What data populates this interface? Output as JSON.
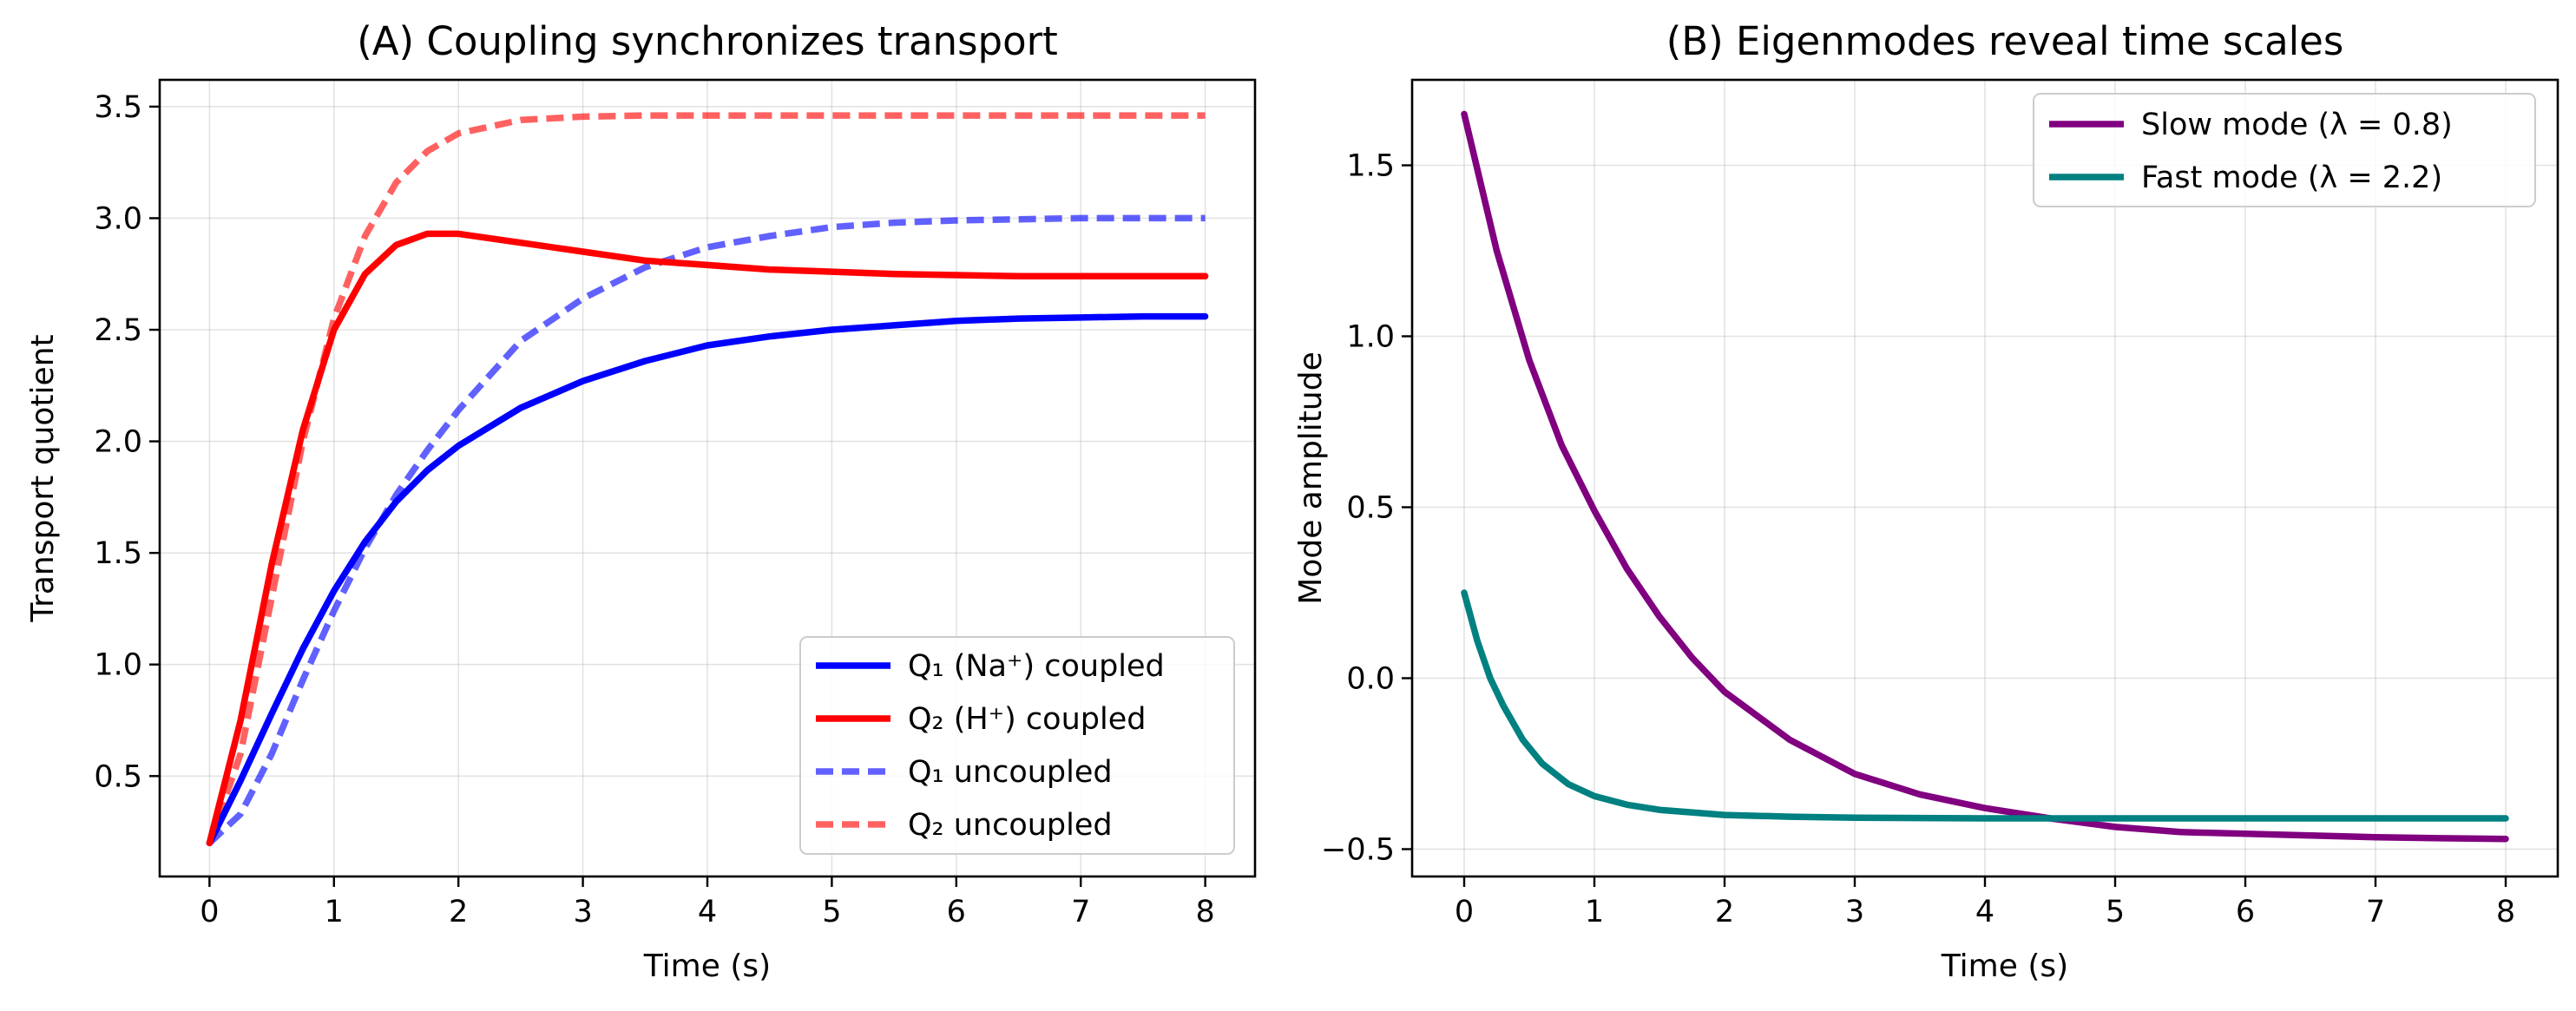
{
  "chart_data": [
    {
      "type": "line",
      "title": "(A) Coupling synchronizes transport",
      "xlabel": "Time (s)",
      "ylabel": "Transport quotient",
      "xlim": [
        -0.4,
        8.4
      ],
      "ylim": [
        0.05,
        3.62
      ],
      "xticks": [
        "0",
        "1",
        "2",
        "3",
        "4",
        "5",
        "6",
        "7",
        "8"
      ],
      "yticks": [
        "0.5",
        "1.0",
        "1.5",
        "2.0",
        "2.5",
        "3.0",
        "3.5"
      ],
      "grid": true,
      "legend_position": "lower-right",
      "series": [
        {
          "name": "Q₁ (Na⁺) coupled",
          "color": "#0000ff",
          "style": "solid",
          "opacity": 1,
          "x": [
            0,
            0.25,
            0.5,
            0.75,
            1,
            1.25,
            1.5,
            1.75,
            2,
            2.5,
            3,
            3.5,
            4,
            4.5,
            5,
            5.5,
            6,
            6.5,
            7,
            7.5,
            8
          ],
          "y": [
            0.2,
            0.48,
            0.78,
            1.07,
            1.33,
            1.55,
            1.73,
            1.87,
            1.98,
            2.15,
            2.27,
            2.36,
            2.43,
            2.47,
            2.5,
            2.52,
            2.54,
            2.55,
            2.555,
            2.56,
            2.56
          ]
        },
        {
          "name": "Q₂ (H⁺) coupled",
          "color": "#ff0000",
          "style": "solid",
          "opacity": 1,
          "x": [
            0,
            0.25,
            0.5,
            0.75,
            1,
            1.25,
            1.5,
            1.75,
            2,
            2.25,
            2.5,
            3,
            3.5,
            4,
            4.5,
            5,
            5.5,
            6,
            6.5,
            7,
            7.5,
            8
          ],
          "y": [
            0.2,
            0.75,
            1.45,
            2.05,
            2.5,
            2.75,
            2.88,
            2.93,
            2.93,
            2.91,
            2.89,
            2.85,
            2.81,
            2.79,
            2.77,
            2.76,
            2.75,
            2.745,
            2.74,
            2.74,
            2.74,
            2.74
          ]
        },
        {
          "name": "Q₁ uncoupled",
          "color": "#0000ff",
          "style": "dashed",
          "opacity": 0.62,
          "x": [
            0,
            0.25,
            0.5,
            0.75,
            1,
            1.25,
            1.5,
            1.75,
            2,
            2.5,
            3,
            3.5,
            4,
            4.5,
            5,
            5.5,
            6,
            6.5,
            7,
            7.5,
            8
          ],
          "y": [
            0.2,
            0.33,
            0.6,
            0.93,
            1.24,
            1.52,
            1.76,
            1.96,
            2.14,
            2.45,
            2.64,
            2.78,
            2.87,
            2.92,
            2.96,
            2.98,
            2.99,
            2.995,
            3.0,
            3.0,
            3.0
          ]
        },
        {
          "name": "Q₂ uncoupled",
          "color": "#ff0000",
          "style": "dashed",
          "opacity": 0.62,
          "x": [
            0,
            0.25,
            0.5,
            0.75,
            1,
            1.25,
            1.5,
            1.75,
            2,
            2.5,
            3,
            3.5,
            4,
            5,
            6,
            7,
            8
          ],
          "y": [
            0.2,
            0.6,
            1.3,
            2.0,
            2.55,
            2.92,
            3.16,
            3.3,
            3.38,
            3.44,
            3.455,
            3.46,
            3.46,
            3.46,
            3.46,
            3.46,
            3.46
          ]
        }
      ]
    },
    {
      "type": "line",
      "title": "(B) Eigenmodes reveal time scales",
      "xlabel": "Time (s)",
      "ylabel": "Mode amplitude",
      "xlim": [
        -0.4,
        8.4
      ],
      "ylim": [
        -0.58,
        1.75
      ],
      "xticks": [
        "0",
        "1",
        "2",
        "3",
        "4",
        "5",
        "6",
        "7",
        "8"
      ],
      "yticks": [
        "−0.5",
        "0.0",
        "0.5",
        "1.0",
        "1.5"
      ],
      "grid": true,
      "legend_position": "upper-right",
      "series": [
        {
          "name": "Slow mode (λ = 0.8)",
          "color": "#800080",
          "style": "solid",
          "opacity": 1,
          "x": [
            0,
            0.25,
            0.5,
            0.75,
            1,
            1.25,
            1.5,
            1.75,
            2,
            2.5,
            3,
            3.5,
            4,
            4.5,
            5,
            5.5,
            6,
            6.5,
            7,
            7.5,
            8
          ],
          "y": [
            1.65,
            1.25,
            0.93,
            0.68,
            0.49,
            0.32,
            0.18,
            0.06,
            -0.04,
            -0.18,
            -0.28,
            -0.34,
            -0.38,
            -0.41,
            -0.435,
            -0.45,
            -0.455,
            -0.46,
            -0.465,
            -0.468,
            -0.47
          ]
        },
        {
          "name": "Fast mode (λ = 2.2)",
          "color": "#008080",
          "style": "solid",
          "opacity": 1,
          "x": [
            0,
            0.1,
            0.2,
            0.3,
            0.45,
            0.6,
            0.8,
            1,
            1.25,
            1.5,
            2,
            2.5,
            3,
            4,
            5,
            6,
            7,
            8
          ],
          "y": [
            0.25,
            0.11,
            0.0,
            -0.08,
            -0.18,
            -0.25,
            -0.31,
            -0.345,
            -0.37,
            -0.385,
            -0.4,
            -0.405,
            -0.408,
            -0.41,
            -0.41,
            -0.41,
            -0.41,
            -0.41
          ]
        }
      ]
    }
  ]
}
